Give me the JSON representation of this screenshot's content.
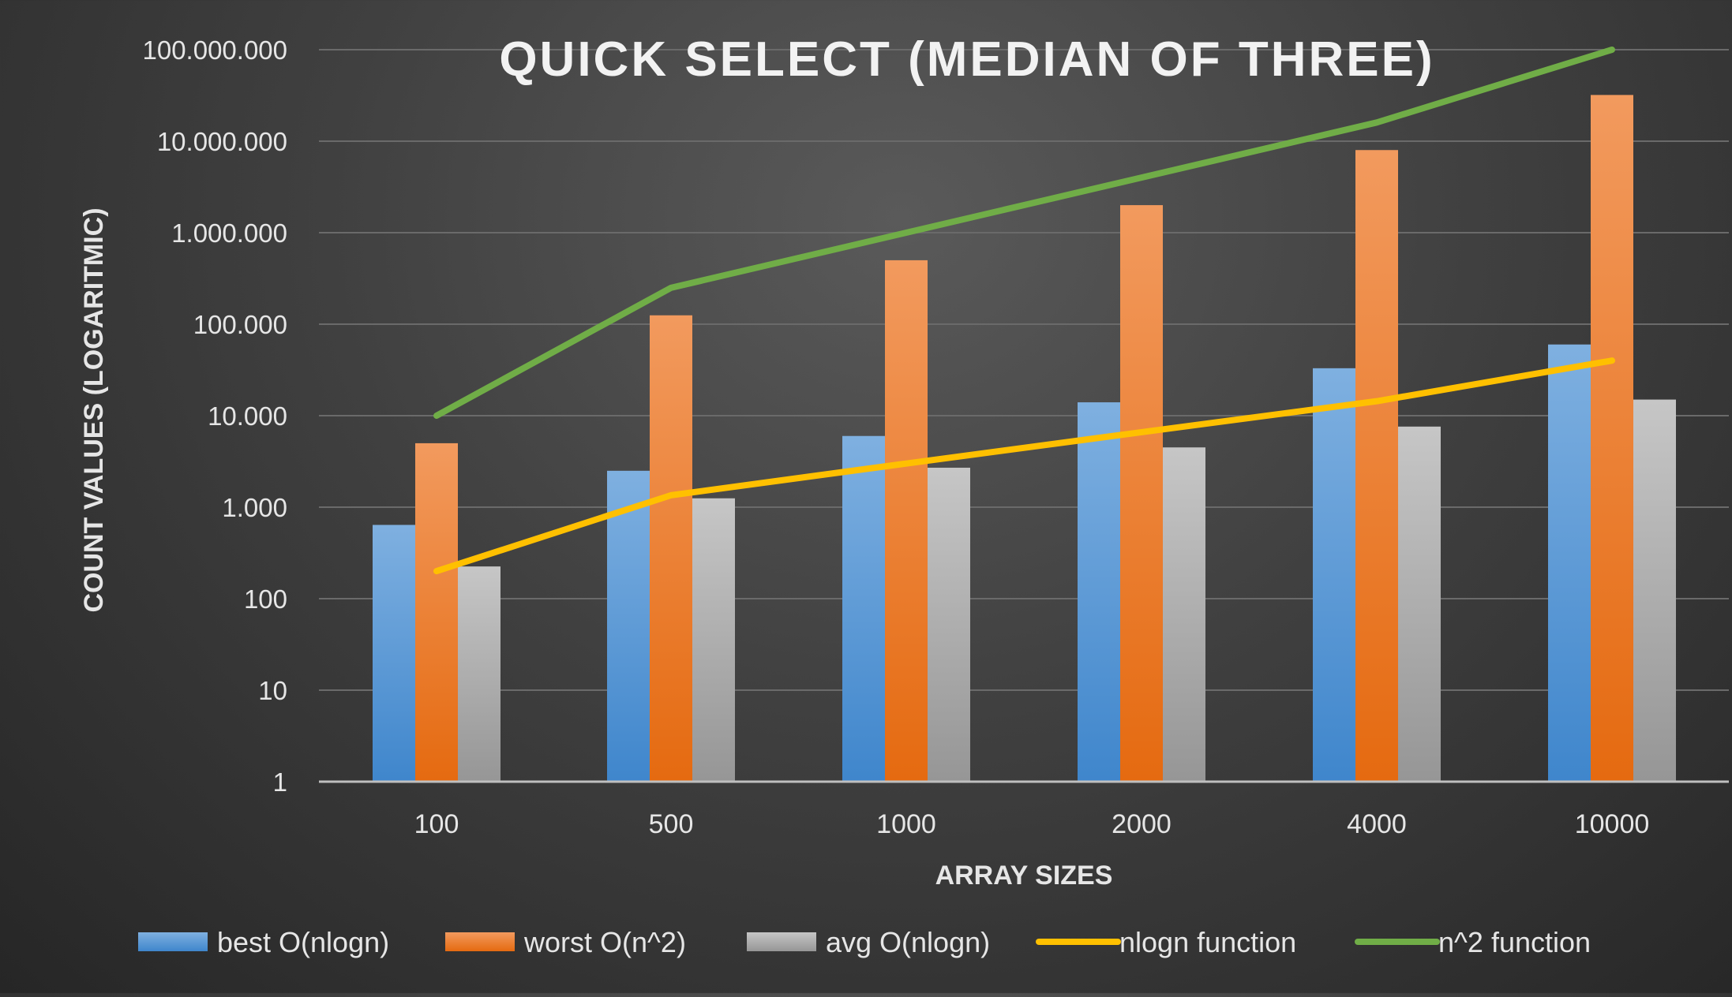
{
  "chart_data": {
    "type": "bar",
    "title": "QUICK SELECT (MEDIAN OF THREE)",
    "xlabel": "ARRAY SIZES",
    "ylabel": "COUNT VALUES (LOGARITMIC)",
    "y_scale": "log",
    "ylim": [
      1,
      100000000
    ],
    "y_ticks": [
      1,
      10,
      100,
      1000,
      10000,
      100000,
      1000000,
      10000000,
      100000000
    ],
    "y_tick_labels": [
      "1",
      "10",
      "100",
      "1.000",
      "10.000",
      "100.000",
      "1.000.000",
      "10.000.000",
      "100.000.000"
    ],
    "categories": [
      "100",
      "500",
      "1000",
      "2000",
      "4000",
      "10000"
    ],
    "grid": true,
    "legend_position": "bottom",
    "series": [
      {
        "name": "best O(nlogn)",
        "kind": "bar",
        "color": "#5b9bd5",
        "values": [
          640,
          2500,
          6000,
          14000,
          33000,
          60000
        ]
      },
      {
        "name": "worst O(n^2)",
        "kind": "bar",
        "color": "#ed7d31",
        "values": [
          5000,
          125000,
          500000,
          2000000,
          8000000,
          32000000
        ]
      },
      {
        "name": "avg O(nlogn)",
        "kind": "bar",
        "color": "#a5a5a5",
        "values": [
          225,
          1250,
          2700,
          4500,
          7600,
          15000
        ]
      },
      {
        "name": "nlogn function",
        "kind": "line",
        "color": "#ffc000",
        "values": [
          200,
          1350,
          3000,
          6600,
          14400,
          40000
        ]
      },
      {
        "name": "n^2 function",
        "kind": "line",
        "color": "#70ad47",
        "values": [
          10000,
          250000,
          1000000,
          4000000,
          16000000,
          100000000
        ]
      }
    ]
  }
}
